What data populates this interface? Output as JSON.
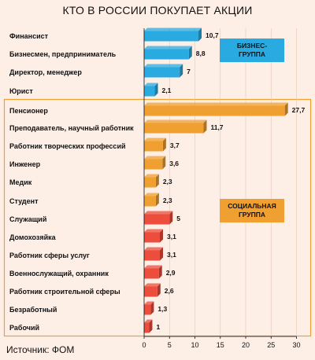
{
  "chart_data": {
    "type": "bar",
    "orientation": "horizontal",
    "title": "КТО В РОССИИ ПОКУПАЕТ АКЦИИ",
    "source": "Источник: ФОМ",
    "xlim": [
      0,
      30
    ],
    "xticks": [
      "0",
      "5",
      "10",
      "15",
      "20",
      "25",
      "30"
    ],
    "groups": [
      {
        "label_line1": "БИЗНЕС-",
        "label_line2": "ГРУППА",
        "color": "#29abe2",
        "items": [
          {
            "category": "Финансист",
            "value": 10.7,
            "label": "10,7"
          },
          {
            "category": "Бизнесмен, предприниматель",
            "value": 8.8,
            "label": "8,8"
          },
          {
            "category": "Директор, менеджер",
            "value": 7,
            "label": "7"
          },
          {
            "category": "Юрист",
            "value": 2.1,
            "label": "2,1"
          }
        ]
      },
      {
        "label_line1": "СОЦИАЛЬНАЯ",
        "label_line2": "ГРУППА",
        "color": "#f0a030",
        "items": [
          {
            "category": "Пенсионер",
            "value": 27.7,
            "label": "27,7",
            "color": "#f0a030"
          },
          {
            "category": "Преподаватель, научный работник",
            "value": 11.7,
            "label": "11,7",
            "color": "#f0a030"
          },
          {
            "category": "Работник творческих профессий",
            "value": 3.7,
            "label": "3,7",
            "color": "#f0a030"
          },
          {
            "category": "Инженер",
            "value": 3.6,
            "label": "3,6",
            "color": "#f0a030"
          },
          {
            "category": "Медик",
            "value": 2.3,
            "label": "2,3",
            "color": "#f0a030"
          },
          {
            "category": "Студент",
            "value": 2.3,
            "label": "2,3",
            "color": "#f0a030"
          },
          {
            "category": "Служащий",
            "value": 5,
            "label": "5",
            "color": "#ec4d3c"
          },
          {
            "category": "Домохозяйка",
            "value": 3.1,
            "label": "3,1",
            "color": "#ec4d3c"
          },
          {
            "category": "Работник сферы услуг",
            "value": 3.1,
            "label": "3,1",
            "color": "#ec4d3c"
          },
          {
            "category": "Военнослужащий, охранник",
            "value": 2.9,
            "label": "2,9",
            "color": "#ec4d3c"
          },
          {
            "category": "Работник строительной сферы",
            "value": 2.6,
            "label": "2,6",
            "color": "#ec4d3c"
          },
          {
            "category": "Безработный",
            "value": 1.3,
            "label": "1,3",
            "color": "#ec4d3c"
          },
          {
            "category": "Рабочий",
            "value": 1,
            "label": "1",
            "color": "#ec4d3c"
          }
        ]
      }
    ],
    "colors": {
      "background": "#fdeee6",
      "business": "#29abe2",
      "social_orange": "#f0a030",
      "social_red": "#ec4d3c",
      "frame": "#f0a030",
      "business_label_bg": "#29abe2",
      "social_label_bg": "#f0a030"
    }
  }
}
